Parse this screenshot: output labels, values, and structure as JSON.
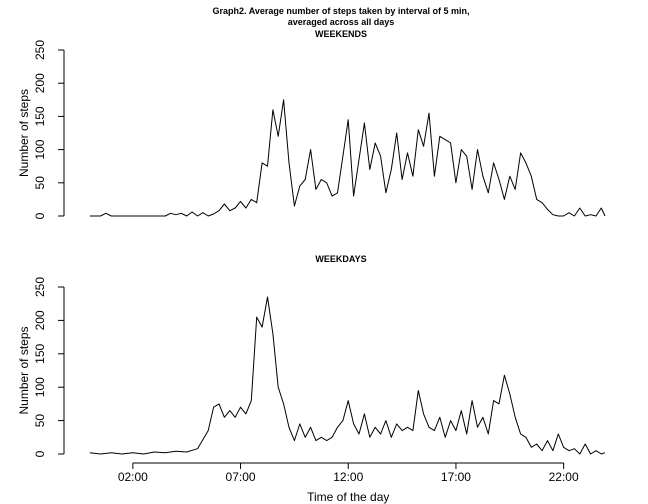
{
  "title_line1": "Graph2. Average number of steps taken by interval of 5 min,",
  "title_line2": "averaged across all days",
  "chart_data": [
    {
      "type": "line",
      "title": "WEEKENDS",
      "xlabel": "",
      "ylabel": "Number of steps",
      "xlim": [
        -0.5,
        23.92
      ],
      "ylim": [
        0,
        250
      ],
      "yticks": [
        0,
        50,
        100,
        150,
        200,
        250
      ],
      "x_unit": "hours",
      "x": [
        0.0,
        0.5,
        0.75,
        1.0,
        1.5,
        2.0,
        2.5,
        3.0,
        3.5,
        3.75,
        4.0,
        4.25,
        4.5,
        4.75,
        5.0,
        5.25,
        5.5,
        5.75,
        6.0,
        6.25,
        6.5,
        6.75,
        7.0,
        7.25,
        7.5,
        7.75,
        8.0,
        8.25,
        8.5,
        8.75,
        9.0,
        9.25,
        9.5,
        9.75,
        10.0,
        10.25,
        10.5,
        10.75,
        11.0,
        11.25,
        11.5,
        11.75,
        12.0,
        12.25,
        12.5,
        12.75,
        13.0,
        13.25,
        13.5,
        13.75,
        14.0,
        14.25,
        14.5,
        14.75,
        15.0,
        15.25,
        15.5,
        15.75,
        16.0,
        16.25,
        16.5,
        16.75,
        17.0,
        17.25,
        17.5,
        17.75,
        18.0,
        18.25,
        18.5,
        18.75,
        19.0,
        19.25,
        19.5,
        19.75,
        20.0,
        20.25,
        20.5,
        20.75,
        21.0,
        21.25,
        21.5,
        21.75,
        22.0,
        22.25,
        22.5,
        22.75,
        23.0,
        23.25,
        23.5,
        23.75,
        23.92
      ],
      "y": [
        0,
        0,
        4,
        0,
        0,
        0,
        0,
        0,
        0,
        4,
        2,
        4,
        0,
        6,
        0,
        5,
        0,
        3,
        8,
        18,
        8,
        12,
        22,
        12,
        25,
        20,
        80,
        75,
        160,
        120,
        175,
        80,
        15,
        45,
        55,
        100,
        40,
        55,
        50,
        30,
        35,
        90,
        145,
        30,
        85,
        140,
        70,
        110,
        90,
        35,
        70,
        125,
        55,
        95,
        60,
        130,
        105,
        155,
        60,
        120,
        115,
        110,
        50,
        100,
        90,
        40,
        100,
        60,
        35,
        80,
        55,
        25,
        60,
        40,
        95,
        80,
        60,
        25,
        20,
        10,
        2,
        0,
        0,
        5,
        0,
        12,
        0,
        2,
        0,
        12,
        0
      ]
    },
    {
      "type": "line",
      "title": "WEEKDAYS",
      "xlabel": "Time of the day",
      "ylabel": "Number of steps",
      "xlim": [
        -0.5,
        23.92
      ],
      "ylim": [
        0,
        250
      ],
      "yticks": [
        0,
        50,
        100,
        150,
        200,
        250
      ],
      "x_unit": "hours",
      "xticks": [
        2,
        7,
        12,
        17,
        22
      ],
      "xtick_labels": [
        "02:00",
        "07:00",
        "12:00",
        "17:00",
        "22:00"
      ],
      "x": [
        0.0,
        0.5,
        1.0,
        1.5,
        2.0,
        2.5,
        3.0,
        3.5,
        4.0,
        4.5,
        5.0,
        5.5,
        5.75,
        6.0,
        6.25,
        6.5,
        6.75,
        7.0,
        7.25,
        7.5,
        7.75,
        8.0,
        8.25,
        8.5,
        8.75,
        9.0,
        9.25,
        9.5,
        9.75,
        10.0,
        10.25,
        10.5,
        10.75,
        11.0,
        11.25,
        11.5,
        11.75,
        12.0,
        12.25,
        12.5,
        12.75,
        13.0,
        13.25,
        13.5,
        13.75,
        14.0,
        14.25,
        14.5,
        14.75,
        15.0,
        15.25,
        15.5,
        15.75,
        16.0,
        16.25,
        16.5,
        16.75,
        17.0,
        17.25,
        17.5,
        17.75,
        18.0,
        18.25,
        18.5,
        18.75,
        19.0,
        19.25,
        19.5,
        19.75,
        20.0,
        20.25,
        20.5,
        20.75,
        21.0,
        21.25,
        21.5,
        21.75,
        22.0,
        22.25,
        22.5,
        22.75,
        23.0,
        23.25,
        23.5,
        23.75,
        23.92
      ],
      "y": [
        2,
        0,
        2,
        0,
        2,
        0,
        3,
        2,
        4,
        3,
        8,
        35,
        70,
        75,
        55,
        65,
        55,
        70,
        60,
        80,
        205,
        190,
        235,
        180,
        100,
        75,
        40,
        20,
        45,
        25,
        40,
        20,
        25,
        20,
        25,
        40,
        50,
        80,
        45,
        30,
        60,
        25,
        40,
        30,
        50,
        25,
        45,
        35,
        40,
        35,
        95,
        60,
        40,
        35,
        55,
        25,
        50,
        35,
        65,
        30,
        80,
        40,
        55,
        30,
        80,
        75,
        118,
        90,
        55,
        30,
        25,
        10,
        15,
        5,
        20,
        5,
        30,
        10,
        5,
        8,
        0,
        15,
        0,
        5,
        0,
        2
      ]
    }
  ]
}
